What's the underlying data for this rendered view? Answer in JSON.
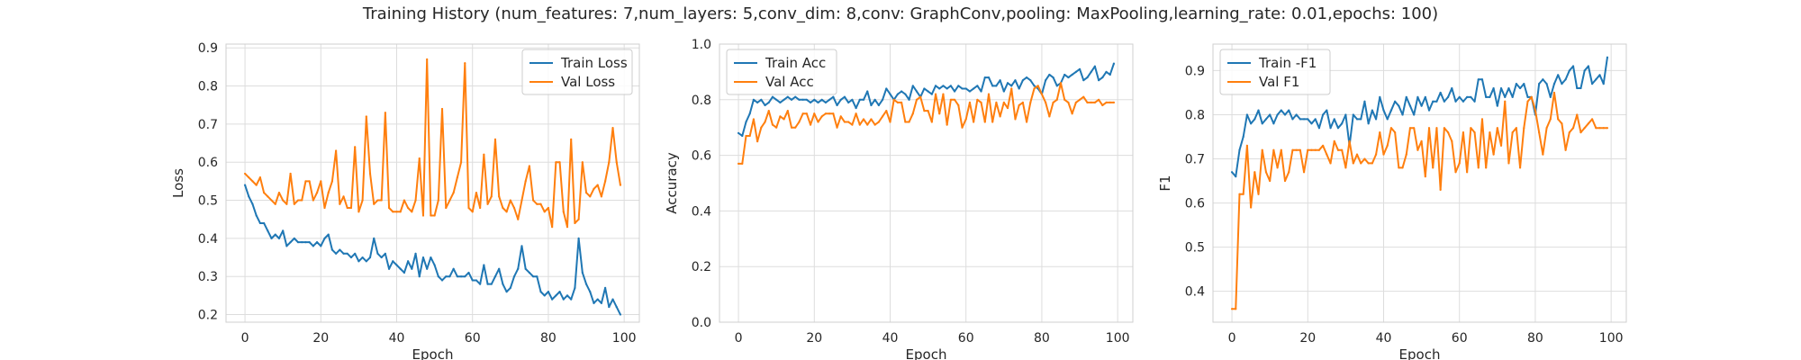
{
  "figure": {
    "suptitle": "Training History (num_features: 7,num_layers: 5,conv_dim: 8,conv: GraphConv,pooling: MaxPooling,learning_rate: 0.01,epochs: 100)"
  },
  "chart_data": [
    {
      "type": "line",
      "xlabel": "Epoch",
      "ylabel": "Loss",
      "xlim": [
        -5,
        104
      ],
      "ylim": [
        0.18,
        0.91
      ],
      "xticks": [
        0,
        20,
        40,
        60,
        80,
        100
      ],
      "yticks": [
        0.2,
        0.3,
        0.4,
        0.5,
        0.6,
        0.7,
        0.8,
        0.9
      ],
      "ytick_labels": [
        "0.2",
        "0.3",
        "0.4",
        "0.5",
        "0.6",
        "0.7",
        "0.8",
        "0.9"
      ],
      "grid": true,
      "legend_position": "top-right",
      "series": [
        {
          "name": "Train Loss",
          "color": "#1f77b4",
          "values": [
            0.54,
            0.51,
            0.49,
            0.46,
            0.44,
            0.44,
            0.42,
            0.4,
            0.41,
            0.4,
            0.42,
            0.38,
            0.39,
            0.4,
            0.39,
            0.39,
            0.39,
            0.39,
            0.38,
            0.39,
            0.38,
            0.4,
            0.41,
            0.37,
            0.36,
            0.37,
            0.36,
            0.36,
            0.35,
            0.36,
            0.34,
            0.35,
            0.34,
            0.35,
            0.4,
            0.36,
            0.35,
            0.36,
            0.32,
            0.34,
            0.33,
            0.32,
            0.31,
            0.34,
            0.32,
            0.36,
            0.3,
            0.35,
            0.32,
            0.35,
            0.33,
            0.3,
            0.29,
            0.3,
            0.3,
            0.32,
            0.3,
            0.3,
            0.3,
            0.31,
            0.29,
            0.29,
            0.28,
            0.33,
            0.28,
            0.28,
            0.3,
            0.32,
            0.28,
            0.26,
            0.27,
            0.3,
            0.32,
            0.38,
            0.32,
            0.31,
            0.3,
            0.3,
            0.26,
            0.25,
            0.26,
            0.24,
            0.25,
            0.26,
            0.24,
            0.25,
            0.24,
            0.27,
            0.4,
            0.31,
            0.28,
            0.26,
            0.23,
            0.24,
            0.23,
            0.27,
            0.22,
            0.24,
            0.22,
            0.2
          ]
        },
        {
          "name": "Val Loss",
          "color": "#ff7f0e",
          "values": [
            0.57,
            0.56,
            0.55,
            0.54,
            0.56,
            0.52,
            0.51,
            0.5,
            0.49,
            0.52,
            0.5,
            0.49,
            0.57,
            0.49,
            0.5,
            0.5,
            0.55,
            0.55,
            0.5,
            0.52,
            0.55,
            0.48,
            0.52,
            0.55,
            0.63,
            0.49,
            0.51,
            0.48,
            0.48,
            0.64,
            0.47,
            0.5,
            0.72,
            0.57,
            0.49,
            0.5,
            0.5,
            0.73,
            0.48,
            0.47,
            0.47,
            0.47,
            0.5,
            0.48,
            0.47,
            0.5,
            0.61,
            0.46,
            0.87,
            0.46,
            0.46,
            0.5,
            0.74,
            0.48,
            0.5,
            0.52,
            0.56,
            0.6,
            0.86,
            0.48,
            0.47,
            0.52,
            0.48,
            0.62,
            0.49,
            0.51,
            0.66,
            0.51,
            0.48,
            0.47,
            0.5,
            0.48,
            0.45,
            0.5,
            0.55,
            0.59,
            0.5,
            0.49,
            0.49,
            0.47,
            0.48,
            0.43,
            0.6,
            0.6,
            0.47,
            0.43,
            0.66,
            0.44,
            0.45,
            0.6,
            0.52,
            0.51,
            0.53,
            0.54,
            0.51,
            0.55,
            0.6,
            0.69,
            0.6,
            0.54
          ]
        }
      ]
    },
    {
      "type": "line",
      "xlabel": "Epoch",
      "ylabel": "Accuracy",
      "xlim": [
        -5,
        104
      ],
      "ylim": [
        0.0,
        1.0
      ],
      "xticks": [
        0,
        20,
        40,
        60,
        80,
        100
      ],
      "yticks": [
        0.0,
        0.2,
        0.4,
        0.6,
        0.8,
        1.0
      ],
      "ytick_labels": [
        "0.0",
        "0.2",
        "0.4",
        "0.6",
        "0.8",
        "1.0"
      ],
      "grid": true,
      "legend_position": "top-left",
      "series": [
        {
          "name": "Train Acc",
          "color": "#1f77b4",
          "values": [
            0.68,
            0.67,
            0.72,
            0.75,
            0.8,
            0.79,
            0.8,
            0.78,
            0.79,
            0.81,
            0.8,
            0.79,
            0.8,
            0.81,
            0.8,
            0.81,
            0.8,
            0.8,
            0.8,
            0.79,
            0.8,
            0.79,
            0.8,
            0.79,
            0.8,
            0.81,
            0.78,
            0.8,
            0.81,
            0.79,
            0.8,
            0.77,
            0.8,
            0.8,
            0.83,
            0.78,
            0.8,
            0.78,
            0.8,
            0.84,
            0.82,
            0.8,
            0.82,
            0.83,
            0.82,
            0.8,
            0.85,
            0.83,
            0.81,
            0.84,
            0.83,
            0.82,
            0.85,
            0.84,
            0.85,
            0.84,
            0.85,
            0.83,
            0.85,
            0.84,
            0.84,
            0.83,
            0.84,
            0.85,
            0.83,
            0.88,
            0.88,
            0.85,
            0.85,
            0.87,
            0.83,
            0.86,
            0.85,
            0.87,
            0.84,
            0.87,
            0.88,
            0.87,
            0.85,
            0.84,
            0.82,
            0.87,
            0.89,
            0.88,
            0.85,
            0.86,
            0.89,
            0.88,
            0.89,
            0.9,
            0.91,
            0.87,
            0.88,
            0.9,
            0.92,
            0.87,
            0.88,
            0.9,
            0.89,
            0.93
          ]
        },
        {
          "name": "Val Acc",
          "color": "#ff7f0e",
          "values": [
            0.57,
            0.57,
            0.67,
            0.67,
            0.73,
            0.65,
            0.7,
            0.72,
            0.76,
            0.71,
            0.7,
            0.74,
            0.73,
            0.76,
            0.7,
            0.7,
            0.72,
            0.75,
            0.75,
            0.71,
            0.75,
            0.72,
            0.74,
            0.75,
            0.75,
            0.75,
            0.7,
            0.74,
            0.72,
            0.72,
            0.71,
            0.75,
            0.71,
            0.73,
            0.71,
            0.73,
            0.71,
            0.72,
            0.74,
            0.76,
            0.72,
            0.8,
            0.79,
            0.79,
            0.72,
            0.72,
            0.75,
            0.8,
            0.81,
            0.76,
            0.76,
            0.72,
            0.82,
            0.75,
            0.82,
            0.71,
            0.8,
            0.8,
            0.78,
            0.7,
            0.73,
            0.79,
            0.72,
            0.8,
            0.79,
            0.72,
            0.82,
            0.72,
            0.79,
            0.74,
            0.79,
            0.77,
            0.84,
            0.73,
            0.78,
            0.79,
            0.72,
            0.79,
            0.84,
            0.85,
            0.82,
            0.79,
            0.74,
            0.79,
            0.8,
            0.86,
            0.8,
            0.79,
            0.75,
            0.79,
            0.8,
            0.81,
            0.79,
            0.79,
            0.79,
            0.8,
            0.78,
            0.79,
            0.79,
            0.79
          ]
        }
      ]
    },
    {
      "type": "line",
      "xlabel": "Epoch",
      "ylabel": "F1",
      "xlim": [
        -5,
        104
      ],
      "ylim": [
        0.33,
        0.96
      ],
      "xticks": [
        0,
        20,
        40,
        60,
        80,
        100
      ],
      "yticks": [
        0.4,
        0.5,
        0.6,
        0.7,
        0.8,
        0.9
      ],
      "ytick_labels": [
        "0.4",
        "0.5",
        "0.6",
        "0.7",
        "0.8",
        "0.9"
      ],
      "grid": true,
      "legend_position": "top-left",
      "series": [
        {
          "name": "Train -F1",
          "color": "#1f77b4",
          "values": [
            0.67,
            0.66,
            0.72,
            0.75,
            0.8,
            0.78,
            0.79,
            0.81,
            0.78,
            0.79,
            0.8,
            0.78,
            0.8,
            0.81,
            0.8,
            0.81,
            0.79,
            0.8,
            0.79,
            0.79,
            0.79,
            0.78,
            0.79,
            0.77,
            0.8,
            0.81,
            0.77,
            0.79,
            0.77,
            0.78,
            0.8,
            0.73,
            0.8,
            0.79,
            0.79,
            0.83,
            0.78,
            0.81,
            0.79,
            0.84,
            0.81,
            0.79,
            0.81,
            0.83,
            0.82,
            0.8,
            0.84,
            0.82,
            0.8,
            0.84,
            0.82,
            0.84,
            0.81,
            0.83,
            0.83,
            0.85,
            0.83,
            0.84,
            0.86,
            0.83,
            0.84,
            0.83,
            0.84,
            0.84,
            0.83,
            0.88,
            0.88,
            0.84,
            0.84,
            0.86,
            0.82,
            0.86,
            0.84,
            0.86,
            0.84,
            0.87,
            0.86,
            0.87,
            0.84,
            0.84,
            0.8,
            0.87,
            0.88,
            0.87,
            0.84,
            0.87,
            0.89,
            0.87,
            0.88,
            0.9,
            0.91,
            0.86,
            0.86,
            0.9,
            0.91,
            0.87,
            0.88,
            0.89,
            0.87,
            0.93
          ]
        },
        {
          "name": "Val F1",
          "color": "#ff7f0e",
          "values": [
            0.36,
            0.36,
            0.62,
            0.62,
            0.73,
            0.59,
            0.67,
            0.62,
            0.72,
            0.67,
            0.65,
            0.72,
            0.68,
            0.72,
            0.65,
            0.67,
            0.72,
            0.72,
            0.72,
            0.67,
            0.72,
            0.72,
            0.72,
            0.72,
            0.73,
            0.71,
            0.69,
            0.74,
            0.72,
            0.72,
            0.68,
            0.74,
            0.69,
            0.71,
            0.69,
            0.7,
            0.69,
            0.69,
            0.71,
            0.76,
            0.71,
            0.73,
            0.77,
            0.76,
            0.68,
            0.68,
            0.71,
            0.77,
            0.77,
            0.72,
            0.74,
            0.66,
            0.77,
            0.68,
            0.77,
            0.63,
            0.77,
            0.76,
            0.74,
            0.67,
            0.69,
            0.76,
            0.67,
            0.77,
            0.76,
            0.68,
            0.79,
            0.68,
            0.76,
            0.71,
            0.77,
            0.73,
            0.83,
            0.69,
            0.76,
            0.77,
            0.68,
            0.77,
            0.83,
            0.84,
            0.81,
            0.76,
            0.71,
            0.77,
            0.79,
            0.85,
            0.79,
            0.78,
            0.72,
            0.76,
            0.77,
            0.8,
            0.76,
            0.77,
            0.78,
            0.79,
            0.77,
            0.77,
            0.77,
            0.77
          ]
        }
      ]
    }
  ]
}
